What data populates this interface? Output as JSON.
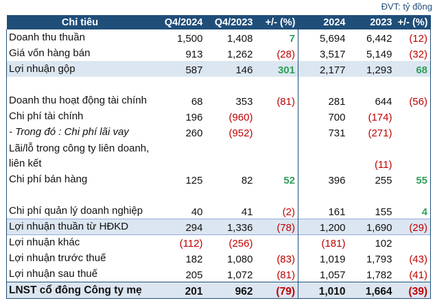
{
  "unit_label": "ĐVT: tỷ đồng",
  "headers": [
    "Chỉ tiêu",
    "Q4/2024",
    "Q4/2023",
    "+/- (%)",
    "2024",
    "2023",
    "+/- (%)"
  ],
  "rows": [
    {
      "label": "Doanh thu thuần",
      "cells": [
        "1,500",
        "1,408",
        "7",
        "5,694",
        "6,442",
        "(12)"
      ]
    },
    {
      "label": "Giá vốn hàng bán",
      "cells": [
        "913",
        "1,262",
        "(28)",
        "3,517",
        "5,149",
        "(32)"
      ]
    },
    {
      "label": "Lợi nhuận gộp",
      "cells": [
        "587",
        "146",
        "301",
        "2,177",
        "1,293",
        "68"
      ]
    },
    {
      "label": "Doanh thu hoạt động tài chính",
      "cells": [
        "68",
        "353",
        "(81)",
        "281",
        "644",
        "(56)"
      ]
    },
    {
      "label": "Chi phí tài chính",
      "cells": [
        "196",
        "(960)",
        "",
        "700",
        "(174)",
        ""
      ]
    },
    {
      "label": "- Trong đó : Chi phí lãi vay",
      "cells": [
        "260",
        "(952)",
        "",
        "731",
        "(271)",
        ""
      ]
    },
    {
      "label": "Lãi/lỗ trong công ty liên doanh, liên kết",
      "cells": [
        "",
        "",
        "",
        "",
        "(11)",
        ""
      ]
    },
    {
      "label": "Chi phí bán hàng",
      "cells": [
        "125",
        "82",
        "52",
        "396",
        "255",
        "55"
      ]
    },
    {
      "label": "Chi phí quản lý doanh nghiệp",
      "cells": [
        "40",
        "41",
        "(2)",
        "161",
        "155",
        "4"
      ]
    },
    {
      "label": "Lợi nhuận thuần từ HĐKD",
      "cells": [
        "294",
        "1,336",
        "(78)",
        "1,200",
        "1,690",
        "(29)"
      ]
    },
    {
      "label": "Lợi nhuận khác",
      "cells": [
        "(112)",
        "(256)",
        "",
        "(181)",
        "102",
        ""
      ]
    },
    {
      "label": "Lợi nhuận trước thuế",
      "cells": [
        "182",
        "1,080",
        "(83)",
        "1,019",
        "1,793",
        "(43)"
      ]
    },
    {
      "label": "Lợi nhuận sau thuế",
      "cells": [
        "205",
        "1,072",
        "(81)",
        "1,057",
        "1,782",
        "(41)"
      ]
    },
    {
      "label": "LNST cổ đông Công ty mẹ",
      "cells": [
        "201",
        "962",
        "(79)",
        "1,010",
        "1,664",
        "(39)"
      ]
    }
  ],
  "colors": {
    "header_bg": "#1f4e79",
    "highlight_bg": "#dce6f1",
    "negative": "#c00000",
    "positive": "#2e9e5b"
  }
}
